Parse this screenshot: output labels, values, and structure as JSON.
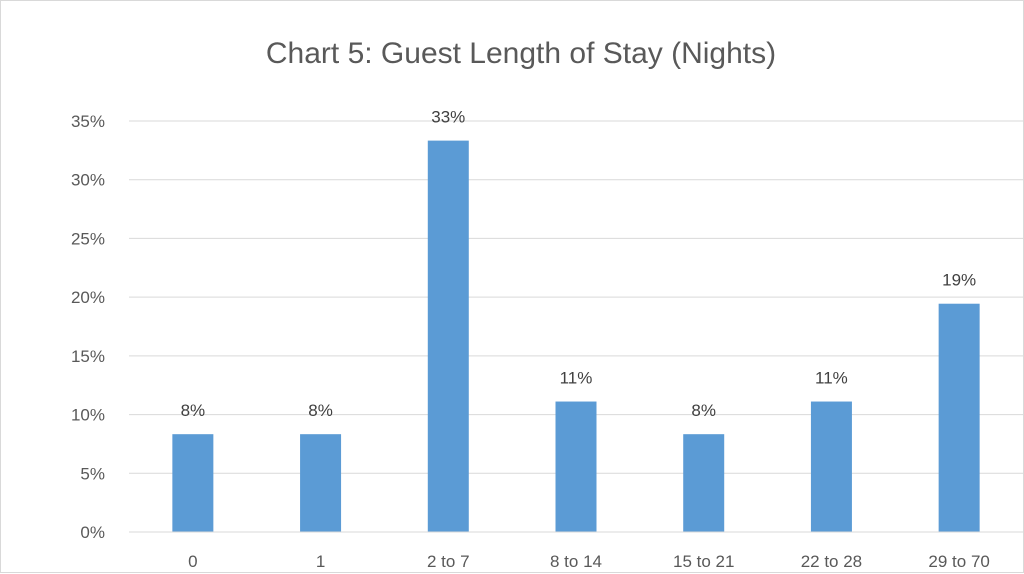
{
  "chart_data": {
    "type": "bar",
    "title": "Chart 5: Guest Length of Stay (Nights)",
    "xlabel": "",
    "ylabel": "",
    "categories": [
      "0",
      "1",
      "2 to 7",
      "8 to 14",
      "15 to 21",
      "22 to 28",
      "29 to 70"
    ],
    "values": [
      8.33,
      8.33,
      33.33,
      11.11,
      8.33,
      11.11,
      19.44
    ],
    "data_labels": [
      "8%",
      "8%",
      "33%",
      "11%",
      "8%",
      "11%",
      "19%"
    ],
    "ylim": [
      0,
      35
    ],
    "y_ticks": [
      0,
      5,
      10,
      15,
      20,
      25,
      30,
      35
    ],
    "y_tick_labels": [
      "0%",
      "5%",
      "10%",
      "15%",
      "20%",
      "25%",
      "30%",
      "35%"
    ],
    "grid": true,
    "legend": "none",
    "colors": {
      "bar": "#5b9bd5",
      "grid": "#d9d9d9",
      "text": "#595959"
    }
  }
}
